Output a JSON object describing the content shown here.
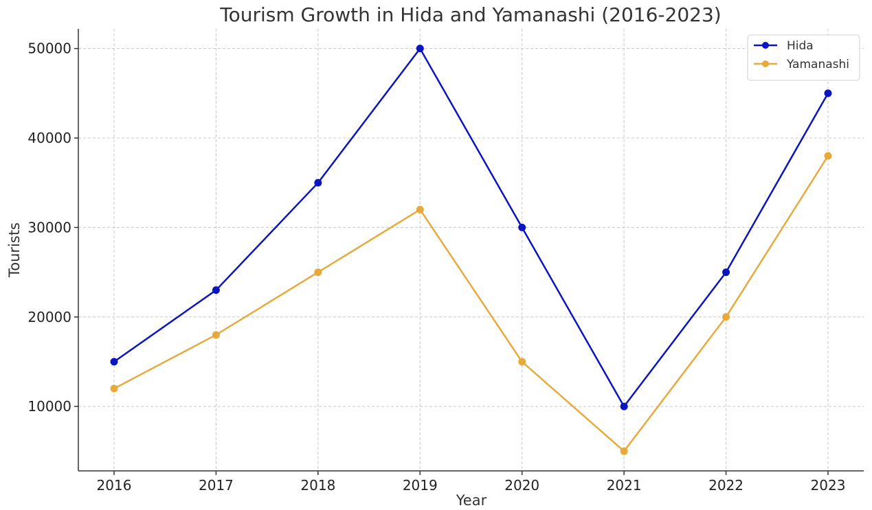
{
  "chart_data": {
    "type": "line",
    "title": "Tourism Growth in Hida and Yamanashi (2016-2023)",
    "xlabel": "Year",
    "ylabel": "Tourists",
    "categories": [
      "2016",
      "2017",
      "2018",
      "2019",
      "2020",
      "2021",
      "2022",
      "2023"
    ],
    "y_ticks": [
      10000,
      20000,
      30000,
      40000,
      50000
    ],
    "ylim": [
      2800,
      52200
    ],
    "grid": true,
    "legend_position": "top-right",
    "series": [
      {
        "name": "Hida",
        "color": "#0a14c0",
        "values": [
          15000,
          23000,
          35000,
          50000,
          30000,
          10000,
          25000,
          45000
        ]
      },
      {
        "name": "Yamanashi",
        "color": "#e8a93c",
        "values": [
          12000,
          18000,
          25000,
          32000,
          15000,
          5000,
          20000,
          38000
        ]
      }
    ]
  }
}
